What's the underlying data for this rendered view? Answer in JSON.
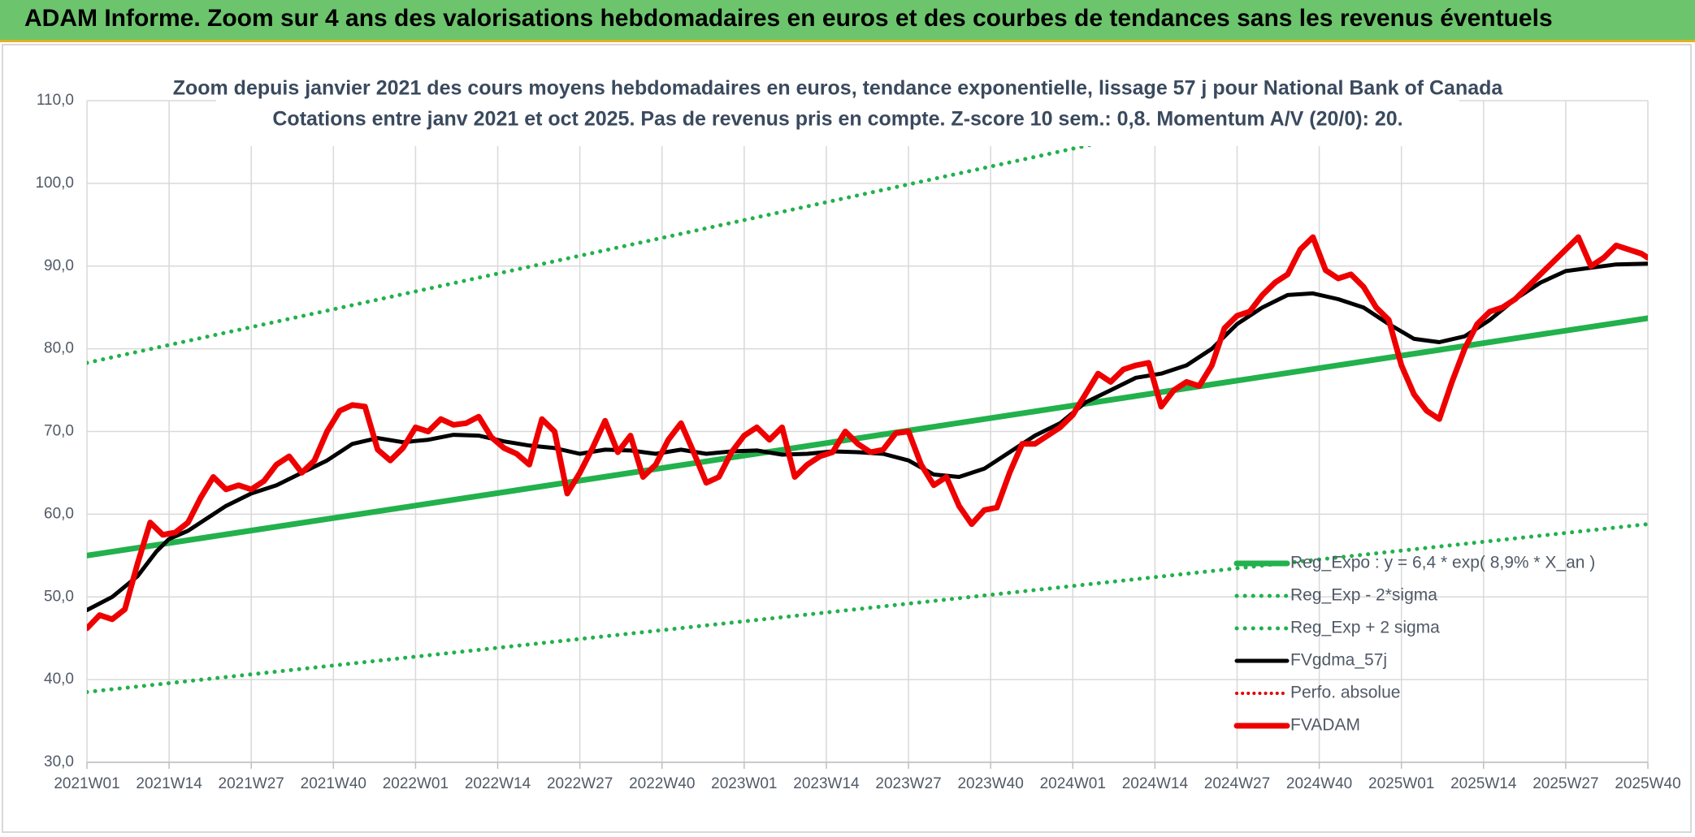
{
  "header": {
    "title": "ADAM Informe. Zoom sur 4 ans des valorisations hebdomadaires en euros et des courbes de tendances sans les revenus éventuels"
  },
  "chart_data": {
    "type": "line",
    "title": "Zoom depuis janvier 2021 des cours moyens hebdomadaires en euros, tendance exponentielle, lissage 57 j pour National Bank of Canada",
    "subtitle": "Cotations entre janv 2021 et oct 2025. Pas de revenus pris en compte. Z-score 10 sem.: 0,8. Momentum A/V (20/0): 20.",
    "ylim": [
      30,
      110
    ],
    "y_ticks": [
      "30,0",
      "40,0",
      "50,0",
      "60,0",
      "70,0",
      "80,0",
      "90,0",
      "100,0",
      "110,0"
    ],
    "x_ticks": [
      "2021W01",
      "2021W14",
      "2021W27",
      "2021W40",
      "2022W01",
      "2022W14",
      "2022W27",
      "2022W40",
      "2023W01",
      "2023W14",
      "2023W27",
      "2023W40",
      "2024W01",
      "2024W14",
      "2024W27",
      "2024W40",
      "2025W01",
      "2025W14",
      "2025W27",
      "2025W40"
    ],
    "grid": true,
    "legend_position": "bottom-right",
    "series": [
      {
        "name": "Reg_Expo : y = 6,4 * exp( 8,9% *  X_an )",
        "style": "solid",
        "color": "#22b14c",
        "x": [
          0,
          247
        ],
        "y": [
          55.0,
          83.7
        ]
      },
      {
        "name": "Reg_Exp - 2*sigma",
        "style": "dotted",
        "color": "#22b14c",
        "x": [
          0,
          247
        ],
        "y": [
          38.5,
          58.8
        ]
      },
      {
        "name": "Reg_Exp + 2 sigma",
        "style": "dotted",
        "color": "#22b14c",
        "x": [
          0,
          247
        ],
        "y": [
          78.3,
          119.3
        ]
      },
      {
        "name": "FVgdma_57j",
        "style": "solid",
        "color": "#000000",
        "x": [
          0,
          4,
          8,
          11,
          13,
          16,
          19,
          22,
          26,
          30,
          34,
          38,
          42,
          46,
          50,
          54,
          58,
          62,
          66,
          70,
          74,
          78,
          82,
          86,
          90,
          94,
          98,
          102,
          106,
          110,
          114,
          118,
          122,
          126,
          130,
          134,
          138,
          142,
          146,
          150,
          154,
          158,
          162,
          166,
          170,
          174,
          178,
          182,
          186,
          190,
          194,
          198,
          202,
          206,
          210,
          214,
          218,
          222,
          226,
          230,
          234,
          238,
          242,
          247
        ],
        "y": [
          48.4,
          50.0,
          52.5,
          55.5,
          57.0,
          58.0,
          59.5,
          61.0,
          62.5,
          63.5,
          65.0,
          66.5,
          68.5,
          69.2,
          68.7,
          69.0,
          69.6,
          69.5,
          68.8,
          68.3,
          68.0,
          67.3,
          67.8,
          67.7,
          67.3,
          67.8,
          67.3,
          67.6,
          67.7,
          67.2,
          67.3,
          67.6,
          67.5,
          67.3,
          66.5,
          64.8,
          64.5,
          65.5,
          67.5,
          69.5,
          71.0,
          73.5,
          75.0,
          76.5,
          77.0,
          78.0,
          80.0,
          83.0,
          85.0,
          86.5,
          86.7,
          86.0,
          85.0,
          83.0,
          81.2,
          80.8,
          81.5,
          83.5,
          86.0,
          88.0,
          89.4,
          89.8,
          90.2,
          90.3
        ]
      },
      {
        "name": "Perfo. absolue",
        "style": "dotted",
        "color": "#e00000",
        "x": [],
        "y": []
      },
      {
        "name": "FVADAM",
        "style": "solid",
        "color": "#ee0000",
        "x": [
          0,
          2,
          4,
          6,
          8,
          10,
          12,
          14,
          16,
          18,
          20,
          22,
          24,
          26,
          28,
          30,
          32,
          34,
          36,
          38,
          40,
          42,
          44,
          46,
          48,
          50,
          52,
          54,
          56,
          58,
          60,
          62,
          64,
          66,
          68,
          70,
          72,
          74,
          76,
          78,
          80,
          82,
          84,
          86,
          88,
          90,
          92,
          94,
          96,
          98,
          100,
          102,
          104,
          106,
          108,
          110,
          112,
          114,
          116,
          118,
          120,
          122,
          124,
          126,
          128,
          130,
          132,
          134,
          136,
          138,
          140,
          142,
          144,
          146,
          148,
          150,
          152,
          154,
          156,
          158,
          160,
          162,
          164,
          166,
          168,
          170,
          172,
          174,
          176,
          178,
          180,
          182,
          184,
          186,
          188,
          190,
          192,
          194,
          196,
          198,
          200,
          202,
          204,
          206,
          208,
          210,
          212,
          214,
          216,
          218,
          220,
          222,
          224,
          226,
          228,
          230,
          232,
          234,
          236,
          238,
          240,
          242,
          244,
          246,
          247
        ],
        "y": [
          46.2,
          47.8,
          47.3,
          48.5,
          54.0,
          59.0,
          57.5,
          57.8,
          59.0,
          62.0,
          64.5,
          63.0,
          63.5,
          63.0,
          64.0,
          66.0,
          67.0,
          65.0,
          66.5,
          70.0,
          72.5,
          73.2,
          73.0,
          67.8,
          66.5,
          68.0,
          70.5,
          70.0,
          71.5,
          70.8,
          71.0,
          71.8,
          69.3,
          68.0,
          67.3,
          66.0,
          71.5,
          70.0,
          62.5,
          65.0,
          68.0,
          71.3,
          67.5,
          69.5,
          64.5,
          66.0,
          69.0,
          71.0,
          67.5,
          63.8,
          64.5,
          67.5,
          69.5,
          70.5,
          69.0,
          70.5,
          64.5,
          66.0,
          67.0,
          67.5,
          70.0,
          68.5,
          67.5,
          67.8,
          69.8,
          70.0,
          66.0,
          63.5,
          64.5,
          61.0,
          58.8,
          60.5,
          60.8,
          65.0,
          68.5,
          68.5,
          69.5,
          70.5,
          72.0,
          74.5,
          77.0,
          76.0,
          77.5,
          78.0,
          78.3,
          73.0,
          75.0,
          76.0,
          75.5,
          78.0,
          82.5,
          84.0,
          84.5,
          86.5,
          88.0,
          89.0,
          92.0,
          93.5,
          89.5,
          88.5,
          89.0,
          87.5,
          85.0,
          83.5,
          78.0,
          74.5,
          72.5,
          71.5,
          76.0,
          80.0,
          83.0,
          84.5,
          85.0,
          86.0,
          87.5,
          89.0,
          90.5,
          92.0,
          93.5,
          90.0,
          91.0,
          92.5,
          92.0,
          91.5,
          91.0
        ]
      }
    ]
  }
}
